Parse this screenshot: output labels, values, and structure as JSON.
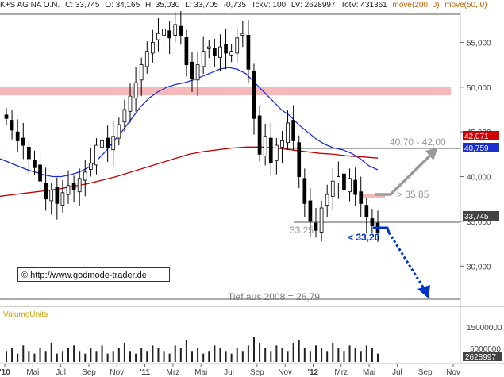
{
  "header": {
    "symbol": "K+S AG NA O.N.",
    "close": "C: 33,745",
    "open": "O: 34,165",
    "high": "H: 35,030",
    "low": "L: 33,705",
    "change": "-0,735",
    "tick": "TckV: 100",
    "lv": "LV: 2628997",
    "totv": "TotV: 431361",
    "ma200": "move(200, 0)",
    "ma50": "move(50, 0)"
  },
  "copyright": "© http://www.godmode-trader.de",
  "volume_label": "VolumeUnits",
  "colors": {
    "candle_up": "#ffffff",
    "candle_down": "#000000",
    "ma50": "#1a2fd0",
    "ma200": "#c00000",
    "resistance_zone": "#f5b8b8",
    "target_label": "#999999",
    "support_label": "#0033cc",
    "price_box": "#444444",
    "ma50_box": "#1a2fd0",
    "ma200_box": "#d00000"
  },
  "chart_data": {
    "type": "candlestick",
    "title": "K+S AG NA O.N.",
    "x_ticks": [
      "'10",
      "Mai",
      "Jul",
      "Sep",
      "Nov",
      "'11",
      "Mrz",
      "Mai",
      "Jul",
      "Sep",
      "Nov",
      "'12",
      "Mrz",
      "Mai",
      "Jul",
      "Sep",
      "Nov"
    ],
    "y_ticks": [
      "55,000",
      "50,000",
      "45,000",
      "40,000",
      "35,000",
      "30,000"
    ],
    "ylim": [
      25.5,
      58.5
    ],
    "last_price": "33,745",
    "ma200_value": "42,071",
    "ma50_value": "40,759",
    "volume_ticks": [
      "15000000",
      "5000000"
    ],
    "volume_last": "2628997",
    "annotations": {
      "target": "40,70 - 42,00",
      "resistance": "> 35,85",
      "support": "< 33,20",
      "low_label": "33,25",
      "historic_low": "Tief aus 2008  =  26,79"
    },
    "close_series": [
      46.5,
      45.2,
      44.0,
      43.5,
      42.0,
      41.0,
      39.5,
      37.5,
      38.5,
      37.0,
      38.2,
      39.0,
      38.5,
      39.8,
      40.5,
      41.5,
      43.5,
      44.0,
      43.2,
      44.5,
      45.8,
      47.5,
      49.0,
      50.5,
      52.5,
      54.0,
      55.0,
      56.0,
      56.5,
      55.5,
      57.0,
      55.8,
      52.5,
      51.0,
      52.5,
      54.0,
      54.5,
      53.5,
      54.5,
      53.8,
      54.0,
      55.5,
      56.0,
      52.0,
      46.5,
      42.5,
      44.5,
      41.5,
      43.5,
      44.0,
      46.0,
      44.0,
      40.0,
      37.0,
      35.0,
      34.0,
      36.5,
      38.0,
      39.5,
      40.0,
      38.5,
      39.8,
      38.0,
      37.0,
      35.5,
      34.5,
      33.745
    ],
    "ma50_series": [
      42.0,
      41.6,
      41.2,
      40.8,
      40.5,
      40.2,
      40.0,
      40.0,
      40.2,
      40.5,
      41.0,
      41.8,
      42.8,
      44.0,
      45.2,
      46.5,
      47.8,
      48.8,
      49.5,
      50.0,
      50.3,
      50.5,
      50.8,
      51.2,
      51.6,
      52.0,
      52.2,
      52.0,
      51.5,
      50.5,
      49.5,
      48.5,
      47.5,
      46.8,
      45.8,
      45.0,
      44.2,
      43.6,
      43.2,
      43.0,
      42.6,
      42.0,
      41.2,
      40.759
    ],
    "ma200_series": [
      37.8,
      38.0,
      38.2,
      38.4,
      38.6,
      38.9,
      39.2,
      39.6,
      40.0,
      40.5,
      41.0,
      41.5,
      42.0,
      42.5,
      42.8,
      43.0,
      43.2,
      43.3,
      43.3,
      43.2,
      43.0,
      42.8,
      42.6,
      42.5,
      42.3,
      42.2,
      42.071
    ],
    "volume_series": [
      4,
      5,
      3,
      6,
      4,
      3,
      5,
      4,
      7,
      3,
      4,
      5,
      6,
      4,
      3,
      5,
      4,
      6,
      3,
      4,
      5,
      7,
      4,
      3,
      5,
      4,
      6,
      5,
      4,
      3,
      6,
      5,
      8,
      4,
      5,
      3,
      4,
      6,
      5,
      4,
      3,
      5,
      4,
      6,
      9,
      7,
      5,
      4,
      6,
      5,
      4,
      7,
      8,
      5,
      4,
      6,
      5,
      4,
      7,
      5,
      4,
      6,
      5,
      4,
      6,
      5,
      3
    ]
  }
}
